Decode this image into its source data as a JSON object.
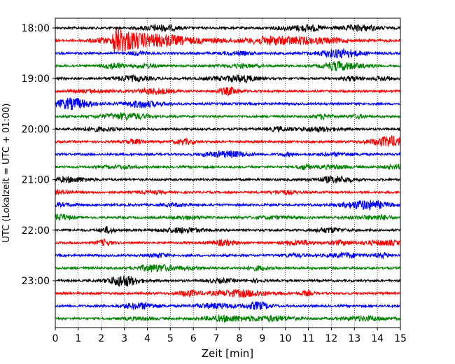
{
  "chart_data": {
    "type": "line",
    "title": "",
    "xlabel": "Zeit  [min]",
    "ylabel": "UTC (Lokalzeit = UTC + 01:00)",
    "xlim": [
      0,
      15
    ],
    "xticks": [
      "0",
      "1",
      "2",
      "3",
      "4",
      "5",
      "6",
      "7",
      "8",
      "9",
      "10",
      "11",
      "12",
      "13",
      "14",
      "15"
    ],
    "yticks": [
      "18:00",
      "19:00",
      "20:00",
      "21:00",
      "22:00",
      "23:00"
    ],
    "grid": "vertical-dotted",
    "trace_interval_min": 15,
    "trace_colors": [
      "#000000",
      "#ff0000",
      "#0000ff",
      "#008000"
    ],
    "traces": [
      {
        "label": "18:00",
        "color": "black"
      },
      {
        "label": "18:15",
        "color": "red",
        "event_start_min": 2.5
      },
      {
        "label": "18:30",
        "color": "blue"
      },
      {
        "label": "18:45",
        "color": "green"
      },
      {
        "label": "19:00",
        "color": "black"
      },
      {
        "label": "19:15",
        "color": "red"
      },
      {
        "label": "19:30",
        "color": "blue"
      },
      {
        "label": "19:45",
        "color": "green"
      },
      {
        "label": "20:00",
        "color": "black"
      },
      {
        "label": "20:15",
        "color": "red"
      },
      {
        "label": "20:30",
        "color": "blue"
      },
      {
        "label": "20:45",
        "color": "green"
      },
      {
        "label": "21:00",
        "color": "black"
      },
      {
        "label": "21:15",
        "color": "red"
      },
      {
        "label": "21:30",
        "color": "blue"
      },
      {
        "label": "21:45",
        "color": "green"
      },
      {
        "label": "22:00",
        "color": "black"
      },
      {
        "label": "22:15",
        "color": "red"
      },
      {
        "label": "22:30",
        "color": "blue"
      },
      {
        "label": "22:45",
        "color": "green"
      },
      {
        "label": "23:00",
        "color": "black"
      },
      {
        "label": "23:15",
        "color": "red"
      },
      {
        "label": "23:30",
        "color": "blue"
      },
      {
        "label": "23:45",
        "color": "green"
      }
    ]
  }
}
